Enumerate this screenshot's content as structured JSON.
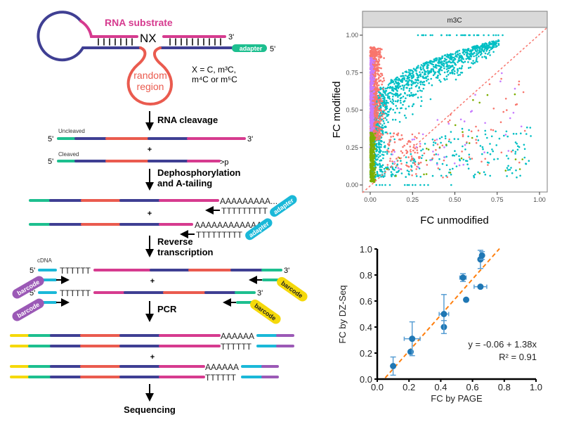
{
  "colors": {
    "teal": "#1dbf8f",
    "navy": "#3f3f93",
    "coral": "#ea5b4f",
    "magenta": "#d63b8f",
    "cyan": "#1ab8d8",
    "purple": "#9b59b6",
    "yellow": "#f5d90a",
    "adapter_teal": "#1dbf8f",
    "series_red": "#f8766d",
    "series_cyan": "#00bfc4",
    "series_purple": "#c77cff",
    "series_green": "#7cae00",
    "bar_blue": "#1f77b4",
    "fit_orange": "#ff7f0e"
  },
  "schema": {
    "hairpin": {
      "rna_substrate_label": "RNA substrate",
      "nx_label": "NX",
      "three_prime": "3'",
      "five_prime": "5'",
      "adapter_label": "adapter",
      "random_region_line1": "random",
      "random_region_line2": "region",
      "x_def_line1": "X = C, m³C,",
      "x_def_line2": "m⁴C or m⁵C"
    },
    "steps": [
      {
        "label_line1": "RNA cleavage",
        "label_line2": ""
      },
      {
        "label_line1": "Dephosphorylation",
        "label_line2": "and A-tailing"
      },
      {
        "label_line1": "Reverse",
        "label_line2": "transcription"
      },
      {
        "label_line1": "PCR",
        "label_line2": ""
      },
      {
        "label_line1": "Sequencing",
        "label_line2": ""
      }
    ],
    "cleavage": {
      "uncleaved_label": "Uncleaved",
      "cleaved_label": "Cleaved",
      "five_prime": "5'",
      "three_prime": "3'",
      "cyclic_phosphate": ">p",
      "plus": "+"
    },
    "tailing": {
      "polyA_1": "AAAAAAAAA...",
      "polyT_1": "TTTTTTTTT",
      "polyA_2": "AAAAAAAAAAAA...",
      "polyT_2": "TTTTTTTTT",
      "adapter_label": "adapter",
      "plus": "+"
    },
    "rt": {
      "cdna_label": "cDNA",
      "five_prime": "5'",
      "three_prime": "3'",
      "polyT": "TTTTTT",
      "barcode_label": "barcode",
      "plus": "+"
    },
    "pcr": {
      "polyA": "AAAAAA",
      "polyT": "TTTTTT",
      "plus": "+"
    }
  },
  "chart_data": [
    {
      "type": "scatter",
      "title": "m3C",
      "facet_label": "m3C",
      "xlabel": "FC unmodified",
      "ylabel": "FC modified",
      "xlim": [
        0,
        1
      ],
      "ylim": [
        0,
        1
      ],
      "xticks": [
        "0.00",
        "0.25",
        "0.50",
        "0.75",
        "1.00"
      ],
      "yticks": [
        "0.00",
        "0.25",
        "0.50",
        "0.75",
        "1.00"
      ],
      "grid": false,
      "reference_line": {
        "style": "dashed",
        "color": "#f8766d",
        "slope": 1,
        "intercept": 0
      },
      "series": [
        {
          "name": "red",
          "color": "#f8766d",
          "description": "dense cluster x 0-0.15, y 0.3-0.95 plus scattered points below diagonal"
        },
        {
          "name": "cyan",
          "color": "#00bfc4",
          "description": "main band rising from (0.05,0.5) to (0.75,0.97); many scattered below diagonal y 0.05-0.35"
        },
        {
          "name": "purple",
          "color": "#c77cff",
          "description": "cluster x 0-0.05, y 0.2-0.85; sparse scattered points"
        },
        {
          "name": "green",
          "color": "#7cae00",
          "description": "cluster x 0-0.05, y 0.02-0.35; sparse scattered points"
        }
      ]
    },
    {
      "type": "scatter",
      "title": "",
      "xlabel": "FC by PAGE",
      "ylabel": "FC by DZ-Seq",
      "xlim": [
        0,
        1
      ],
      "ylim": [
        0,
        1
      ],
      "xticks": [
        "0.0",
        "0.2",
        "0.4",
        "0.6",
        "0.8",
        "1.0"
      ],
      "yticks": [
        "0.0",
        "0.2",
        "0.4",
        "0.6",
        "0.8",
        "1.0"
      ],
      "grid": false,
      "points": [
        {
          "x": 0.1,
          "y": 0.1,
          "xerr": 0.0,
          "yerr": 0.07
        },
        {
          "x": 0.21,
          "y": 0.21,
          "xerr": 0.0,
          "yerr": 0.0
        },
        {
          "x": 0.22,
          "y": 0.31,
          "xerr": 0.05,
          "yerr": 0.13
        },
        {
          "x": 0.42,
          "y": 0.4,
          "xerr": 0.0,
          "yerr": 0.05
        },
        {
          "x": 0.42,
          "y": 0.5,
          "xerr": 0.03,
          "yerr": 0.15
        },
        {
          "x": 0.56,
          "y": 0.61,
          "xerr": 0.0,
          "yerr": 0.0
        },
        {
          "x": 0.54,
          "y": 0.78,
          "xerr": 0.02,
          "yerr": 0.03
        },
        {
          "x": 0.65,
          "y": 0.71,
          "xerr": 0.04,
          "yerr": 0.0
        },
        {
          "x": 0.65,
          "y": 0.92,
          "xerr": 0.0,
          "yerr": 0.07
        },
        {
          "x": 0.66,
          "y": 0.95,
          "xerr": 0.0,
          "yerr": 0.03
        }
      ],
      "fit": {
        "intercept": -0.06,
        "slope": 1.38,
        "x_range": [
          0.05,
          0.77
        ]
      },
      "annotation_equation": "y = -0.06 + 1.38x",
      "annotation_r2": "R² = 0.91"
    }
  ]
}
